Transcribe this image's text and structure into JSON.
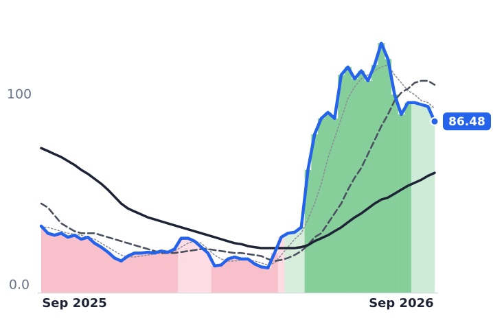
{
  "chart_data": {
    "type": "line",
    "categories": [
      null,
      null,
      null,
      null,
      null,
      "Sep 2025",
      null,
      null,
      null,
      null,
      null,
      null,
      null,
      null,
      null,
      null,
      null,
      null,
      null,
      null,
      null,
      null,
      null,
      null,
      null,
      null,
      null,
      null,
      null,
      null,
      null,
      null,
      null,
      null,
      null,
      null,
      null,
      null,
      null,
      null,
      null,
      null,
      null,
      null,
      null,
      null,
      null,
      null,
      null,
      null,
      null,
      null,
      null,
      null,
      "Sep 2026",
      null,
      null,
      null,
      null,
      null
    ],
    "series": [
      {
        "color": "#2563eb",
        "style": "solid",
        "area": true,
        "area_colors": [
          "#f7c0ca",
          "#f7c0ca",
          "#f7c0ca",
          "#f7c0ca",
          "#f7c0ca",
          "#f7c0ca",
          "#f7c0ca",
          "#f7c0ca",
          "#f7c0ca",
          "#f7c0ca",
          "#f7c0ca",
          "#f7c0ca",
          "#f7c0ca",
          "#f7c0ca",
          "#f7c0ca",
          "#f7c0ca",
          "#f7c0ca",
          "#f7c0ca",
          "#f7c0ca",
          "#f7c0ca",
          "#f7c0ca",
          "#fddde3",
          "#fddde3",
          "#fddde3",
          "#fddde3",
          "#fddde3",
          "#f7c0ca",
          "#f7c0ca",
          "#f7c0ca",
          "#f7c0ca",
          "#f7c0ca",
          "#f7c0ca",
          "#f7c0ca",
          "#f7c0ca",
          "#f7c0ca",
          "#f7c0ca",
          "#fddde3",
          "#d6eedb",
          "#d6eedb",
          "#d6eedb",
          "#86cf9a",
          "#86cf9a",
          "#86cf9a",
          "#86cf9a",
          "#86cf9a",
          "#86cf9a",
          "#86cf9a",
          "#86cf9a",
          "#86cf9a",
          "#86cf9a",
          "#86cf9a",
          "#86cf9a",
          "#86cf9a",
          "#86cf9a",
          "#86cf9a",
          "#86cf9a",
          "#cdebd6",
          "#cdebd6",
          "#cdebd6",
          "#cdebd6"
        ],
        "values": [
          33.6,
          30,
          29,
          30,
          28,
          29,
          27,
          28,
          25,
          23,
          20.5,
          17.5,
          16,
          18.5,
          20,
          20,
          20.4,
          20,
          21,
          20.4,
          22,
          27.5,
          27.5,
          26,
          23,
          20,
          13.5,
          14,
          17,
          18,
          17,
          17,
          14.5,
          13,
          12.5,
          20,
          28,
          30,
          30.5,
          33,
          62,
          80,
          88,
          91,
          88,
          110,
          114,
          108,
          112,
          107,
          115,
          126,
          118,
          100,
          90,
          96,
          96,
          95,
          94,
          86.48
        ]
      },
      {
        "color": "#8a8f99",
        "style": "dotted",
        "values": [
          33,
          33,
          32,
          31,
          30,
          29.5,
          29,
          28,
          27,
          25,
          23,
          21,
          19,
          18,
          18,
          18.5,
          19,
          19.5,
          20,
          20,
          21,
          23,
          25,
          26,
          25,
          22,
          19,
          17,
          16,
          16,
          16.5,
          16.5,
          16,
          15,
          14,
          15,
          19,
          23,
          27,
          30,
          37,
          45,
          55,
          68,
          78,
          88,
          98,
          104,
          108,
          110,
          112,
          114,
          115,
          110,
          106,
          102,
          100,
          97,
          96,
          93
        ]
      },
      {
        "color": "#4a5060",
        "style": "dashed",
        "values": [
          45,
          43,
          39,
          35,
          33,
          31,
          30,
          30,
          30,
          29,
          28,
          27,
          26,
          25,
          24,
          23,
          22,
          21,
          20,
          20,
          20,
          20.5,
          21,
          21.5,
          22,
          22,
          21.5,
          21,
          20.5,
          20,
          20,
          19.5,
          19,
          18.5,
          17,
          16,
          16.5,
          17.5,
          19,
          21,
          24,
          28,
          30,
          35,
          40,
          45,
          52,
          58,
          63,
          70,
          77,
          84,
          90,
          97,
          101,
          103,
          106,
          107,
          107,
          105
        ]
      },
      {
        "color": "#1e2235",
        "style": "solid",
        "values": [
          73,
          71.5,
          70,
          68.5,
          66.5,
          64.5,
          62,
          60,
          57.5,
          55,
          52,
          48.5,
          45,
          42.5,
          41,
          39.5,
          38,
          37,
          36,
          35,
          34,
          33,
          32,
          31,
          30,
          29,
          28,
          27,
          26,
          25,
          24.5,
          23.5,
          23,
          22.5,
          22.5,
          22.5,
          22.5,
          22.5,
          22.5,
          23,
          24,
          26,
          27.5,
          29,
          31,
          33,
          35.5,
          38,
          40,
          42.5,
          45,
          47,
          48,
          50,
          52,
          54,
          55.5,
          57,
          59,
          60.5
        ]
      }
    ],
    "ylim": [
      0,
      135
    ],
    "yticks": [
      {
        "value": 0,
        "label": "0.0"
      },
      100
    ],
    "grid": false
  }
}
